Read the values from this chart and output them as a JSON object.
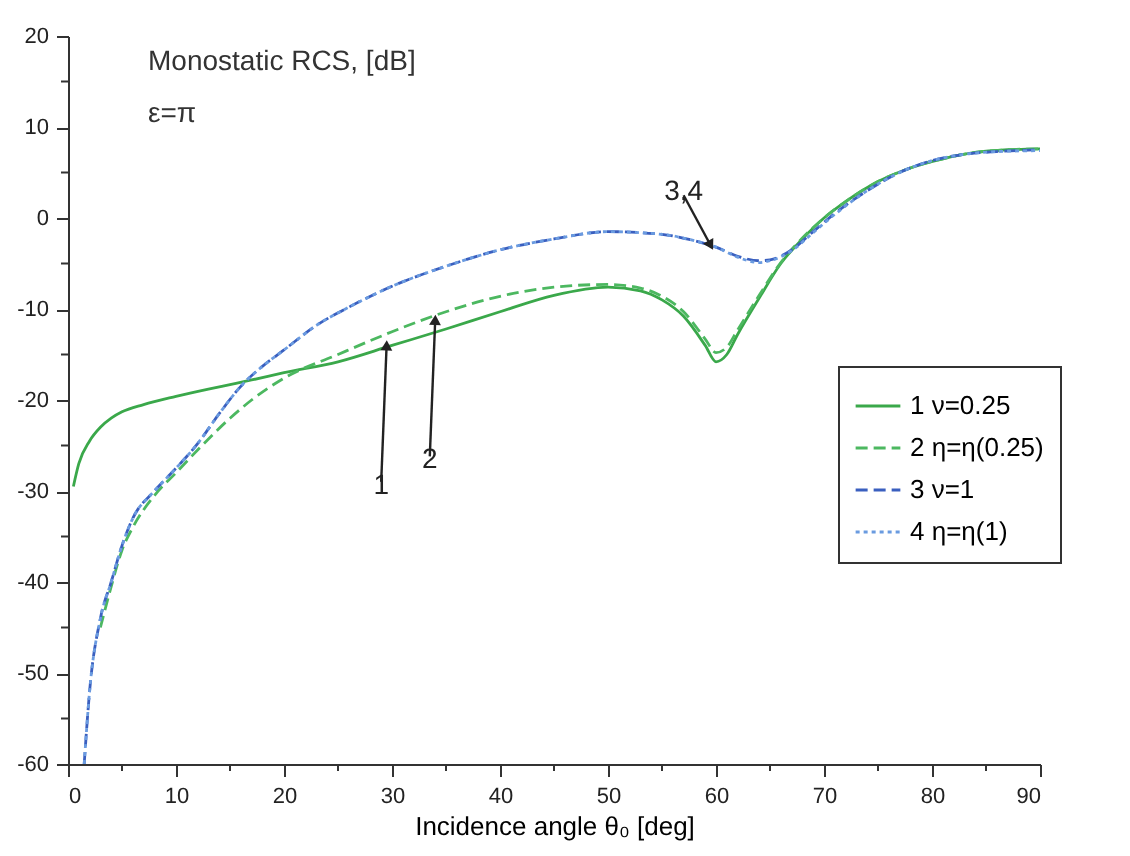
{
  "chart_data": {
    "type": "line",
    "xlabel": "Incidence angle θ₀ [deg]",
    "annotations": [
      "Monostatic RCS, [dB]",
      "ε=π",
      {
        "text": "1",
        "x": 29.5,
        "y": -14
      },
      {
        "text": "2",
        "x": 34,
        "y": -11.2
      },
      {
        "text": "3,4",
        "x": 59.5,
        "y": -3
      }
    ],
    "xlim": [
      0,
      90
    ],
    "xticks": [
      0,
      {
        "value": 5,
        "label": null
      },
      10,
      {
        "value": 15,
        "label": null
      },
      20,
      {
        "value": 25,
        "label": null
      },
      30,
      {
        "value": 35,
        "label": null
      },
      40,
      {
        "value": 45,
        "label": null
      },
      50,
      {
        "value": 55,
        "label": null
      },
      60,
      {
        "value": 65,
        "label": null
      },
      70,
      {
        "value": 75,
        "label": null
      },
      80,
      {
        "value": 85,
        "label": null
      },
      90
    ],
    "ylim": [
      -60,
      20
    ],
    "yticks": [
      -60,
      {
        "value": -55,
        "label": null
      },
      -50,
      {
        "value": -45,
        "label": null
      },
      -40,
      {
        "value": -35,
        "label": null
      },
      -30,
      {
        "value": -25,
        "label": null
      },
      -20,
      {
        "value": -15,
        "label": null
      },
      -10,
      {
        "value": -5,
        "label": null
      },
      0,
      {
        "value": 5,
        "label": null
      },
      10,
      {
        "value": 15,
        "label": null
      },
      20
    ],
    "grid": false,
    "legend": "right",
    "series": [
      {
        "name": "1 ν=0.25",
        "color": "#3aa84a",
        "line_style": "solid",
        "x": [
          0.5,
          1,
          2,
          3,
          4,
          5,
          7,
          10,
          13,
          15,
          17,
          20,
          25,
          30,
          35,
          40,
          45,
          50,
          53,
          55,
          57,
          59,
          60,
          61,
          62,
          64,
          66,
          68,
          70,
          72,
          75,
          78,
          81,
          84,
          87,
          90
        ],
        "values": [
          -29.5,
          -27,
          -24.5,
          -23,
          -22,
          -21.3,
          -20.5,
          -19.6,
          -18.8,
          -18.3,
          -17.8,
          -17,
          -15.8,
          -14,
          -12.2,
          -10.3,
          -8.5,
          -7.6,
          -8,
          -9,
          -10.8,
          -14,
          -15.8,
          -15,
          -12.8,
          -8.8,
          -5,
          -2.3,
          0,
          1.8,
          4,
          5.5,
          6.5,
          7.2,
          7.5,
          7.6
        ]
      },
      {
        "name": "2 η=η(0.25)",
        "color": "#4cb860",
        "line_style": "dashed",
        "x": [
          3,
          4,
          5,
          6,
          8,
          10,
          12,
          15,
          17,
          20,
          25,
          30,
          35,
          40,
          45,
          50,
          53,
          55,
          57,
          59,
          60,
          61,
          62,
          64,
          66,
          68,
          70,
          72,
          75,
          78,
          81,
          84,
          87,
          90
        ],
        "values": [
          -45,
          -40.5,
          -36.5,
          -34,
          -30.5,
          -28,
          -25.5,
          -22,
          -20,
          -17.6,
          -15,
          -12.5,
          -10.3,
          -8.6,
          -7.6,
          -7.3,
          -7.7,
          -8.6,
          -10.3,
          -13.3,
          -14.8,
          -14.2,
          -12.3,
          -8.5,
          -4.9,
          -2.2,
          0,
          1.8,
          4,
          5.5,
          6.5,
          7.2,
          7.5,
          7.6
        ]
      },
      {
        "name": "3 ν=1",
        "color": "#3a5fbf",
        "line_style": "dashed",
        "x": [
          1.5,
          2,
          3,
          4,
          5,
          6,
          8,
          10,
          12,
          14,
          16,
          18,
          20,
          23,
          26,
          30,
          35,
          40,
          45,
          50,
          55,
          58,
          60,
          62,
          64,
          65,
          67,
          69,
          71,
          74,
          77,
          80,
          83,
          86,
          90
        ],
        "values": [
          -60,
          -52,
          -44,
          -40,
          -36,
          -33,
          -30,
          -27.5,
          -24.8,
          -21.5,
          -18.5,
          -16.3,
          -14.5,
          -11.8,
          -9.8,
          -7.5,
          -5.3,
          -3.5,
          -2.3,
          -1.5,
          -1.8,
          -2.5,
          -3.2,
          -4.2,
          -4.7,
          -4.6,
          -3.5,
          -1.5,
          0.5,
          3,
          5,
          6.3,
          7,
          7.3,
          7.5
        ]
      },
      {
        "name": "4 η=η(1)",
        "color": "#6a9be0",
        "line_style": "dotted",
        "x": [
          1.5,
          2,
          3,
          4,
          5,
          6,
          8,
          10,
          12,
          14,
          16,
          18,
          20,
          23,
          26,
          30,
          35,
          40,
          45,
          50,
          55,
          58,
          60,
          62,
          64,
          65,
          67,
          69,
          71,
          74,
          77,
          80,
          83,
          86,
          90
        ],
        "values": [
          -60,
          -52,
          -44,
          -40,
          -36,
          -33,
          -30,
          -27.5,
          -24.8,
          -21.5,
          -18.5,
          -16.3,
          -14.5,
          -11.8,
          -9.8,
          -7.5,
          -5.3,
          -3.5,
          -2.3,
          -1.5,
          -1.8,
          -2.5,
          -3.2,
          -4.3,
          -4.9,
          -4.7,
          -3.6,
          -1.6,
          0.4,
          3,
          5,
          6.3,
          7,
          7.3,
          7.4
        ]
      }
    ]
  }
}
